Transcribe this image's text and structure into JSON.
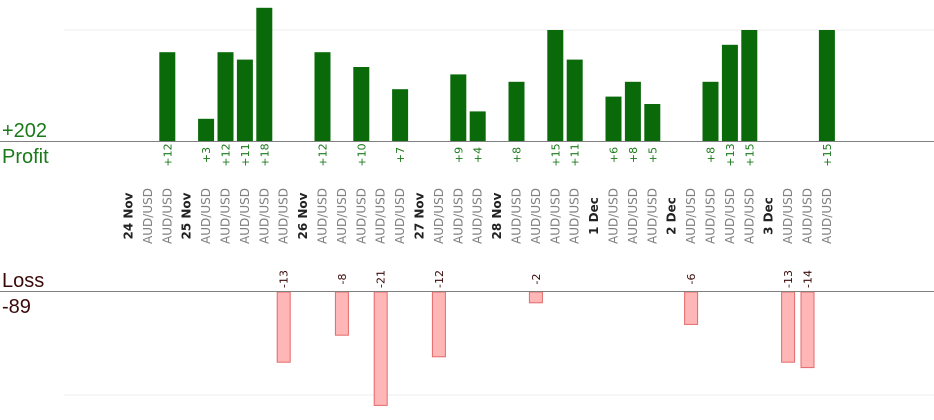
{
  "summary": {
    "profit_total": "+202",
    "profit_label": "Profit",
    "loss_label": "Loss",
    "loss_total": "-89"
  },
  "colors": {
    "profit_fill": "#0a6a0a",
    "profit_text": "#1a7a1a",
    "loss_fill": "#ffb6b6",
    "loss_stroke": "#e46a6a",
    "category_text": "#808080",
    "date_text": "#222222",
    "axis": "#808080",
    "grid": "#eeeeee"
  },
  "chart_data": {
    "type": "bar",
    "profit_ylim": [
      0,
      24
    ],
    "loss_ylim": [
      0,
      20
    ],
    "categories": [
      {
        "date": "24 Nov"
      },
      {
        "label": "AUD/USD"
      },
      {
        "label": "AUD/USD",
        "profit": 12,
        "profit_label": "+12"
      },
      {
        "date": "25 Nov"
      },
      {
        "label": "AUD/USD",
        "profit": 3,
        "profit_label": "+3"
      },
      {
        "label": "AUD/USD",
        "profit": 12,
        "profit_label": "+12"
      },
      {
        "label": "AUD/USD",
        "profit": 11,
        "profit_label": "+11"
      },
      {
        "label": "AUD/USD",
        "profit": 18,
        "profit_label": "+18"
      },
      {
        "label": "AUD/USD",
        "loss": 13,
        "loss_label": "-13"
      },
      {
        "date": "26 Nov"
      },
      {
        "label": "AUD/USD",
        "profit": 12,
        "profit_label": "+12"
      },
      {
        "label": "AUD/USD",
        "loss": 8,
        "loss_label": "-8"
      },
      {
        "label": "AUD/USD",
        "profit": 10,
        "profit_label": "+10"
      },
      {
        "label": "AUD/USD",
        "loss": 21,
        "loss_label": "-21"
      },
      {
        "label": "AUD/USD",
        "profit": 7,
        "profit_label": "+7"
      },
      {
        "date": "27 Nov"
      },
      {
        "label": "AUD/USD",
        "loss": 12,
        "loss_label": "-12"
      },
      {
        "label": "AUD/USD",
        "profit": 9,
        "profit_label": "+9"
      },
      {
        "label": "AUD/USD",
        "profit": 4,
        "profit_label": "+4"
      },
      {
        "date": "28 Nov"
      },
      {
        "label": "AUD/USD",
        "profit": 8,
        "profit_label": "+8"
      },
      {
        "label": "AUD/USD",
        "loss": 2,
        "loss_label": "-2"
      },
      {
        "label": "AUD/USD",
        "profit": 15,
        "profit_label": "+15"
      },
      {
        "label": "AUD/USD",
        "profit": 11,
        "profit_label": "+11"
      },
      {
        "date": "1 Dec"
      },
      {
        "label": "AUD/USD",
        "profit": 6,
        "profit_label": "+6"
      },
      {
        "label": "AUD/USD",
        "profit": 8,
        "profit_label": "+8"
      },
      {
        "label": "AUD/USD",
        "profit": 5,
        "profit_label": "+5"
      },
      {
        "date": "2 Dec"
      },
      {
        "label": "AUD/USD",
        "loss": 6,
        "loss_label": "-6"
      },
      {
        "label": "AUD/USD",
        "profit": 8,
        "profit_label": "+8"
      },
      {
        "label": "AUD/USD",
        "profit": 13,
        "profit_label": "+13"
      },
      {
        "label": "AUD/USD",
        "profit": 15,
        "profit_label": "+15"
      },
      {
        "date": "3 Dec"
      },
      {
        "label": "AUD/USD",
        "loss": 13,
        "loss_label": "-13"
      },
      {
        "label": "AUD/USD",
        "loss": 14,
        "loss_label": "-14"
      },
      {
        "label": "AUD/USD",
        "profit": 15,
        "profit_label": "+15"
      }
    ]
  }
}
